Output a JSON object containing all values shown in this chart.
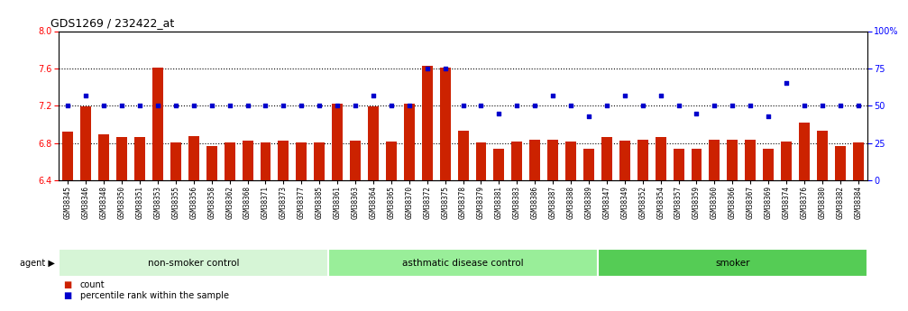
{
  "title": "GDS1269 / 232422_at",
  "samples": [
    "GSM38345",
    "GSM38346",
    "GSM38348",
    "GSM38350",
    "GSM38351",
    "GSM38353",
    "GSM38355",
    "GSM38356",
    "GSM38358",
    "GSM38362",
    "GSM38368",
    "GSM38371",
    "GSM38373",
    "GSM38377",
    "GSM38385",
    "GSM38361",
    "GSM38363",
    "GSM38364",
    "GSM38365",
    "GSM38370",
    "GSM38372",
    "GSM38375",
    "GSM38378",
    "GSM38379",
    "GSM38381",
    "GSM38383",
    "GSM38386",
    "GSM38387",
    "GSM38388",
    "GSM38389",
    "GSM38347",
    "GSM38349",
    "GSM38352",
    "GSM38354",
    "GSM38357",
    "GSM38359",
    "GSM38360",
    "GSM38366",
    "GSM38367",
    "GSM38369",
    "GSM38374",
    "GSM38376",
    "GSM38380",
    "GSM38382",
    "GSM38384"
  ],
  "bar_values": [
    6.92,
    7.19,
    6.89,
    6.86,
    6.86,
    7.61,
    6.81,
    6.87,
    6.77,
    6.81,
    6.83,
    6.81,
    6.83,
    6.81,
    6.81,
    7.22,
    6.83,
    7.19,
    6.82,
    7.22,
    7.63,
    7.61,
    6.93,
    6.81,
    6.74,
    6.82,
    6.84,
    6.84,
    6.82,
    6.74,
    6.86,
    6.83,
    6.84,
    6.86,
    6.74,
    6.74,
    6.84,
    6.84,
    6.84,
    6.74,
    6.82,
    7.02,
    6.93,
    6.77,
    6.81
  ],
  "percentile_values": [
    50,
    57,
    50,
    50,
    50,
    50,
    50,
    50,
    50,
    50,
    50,
    50,
    50,
    50,
    50,
    50,
    50,
    57,
    50,
    50,
    75,
    75,
    50,
    50,
    45,
    50,
    50,
    57,
    50,
    43,
    50,
    57,
    50,
    57,
    50,
    45,
    50,
    50,
    50,
    43,
    65,
    50,
    50,
    50,
    50
  ],
  "groups": [
    {
      "label": "non-smoker control",
      "start": 0,
      "end": 15,
      "color": "#d6f5d6"
    },
    {
      "label": "asthmatic disease control",
      "start": 15,
      "end": 30,
      "color": "#99ee99"
    },
    {
      "label": "smoker",
      "start": 30,
      "end": 45,
      "color": "#55cc55"
    }
  ],
  "ylim_left": [
    6.4,
    8.0
  ],
  "ylim_right": [
    0,
    100
  ],
  "yticks_left": [
    6.4,
    6.8,
    7.2,
    7.6,
    8.0
  ],
  "yticks_right": [
    0,
    25,
    50,
    75,
    100
  ],
  "bar_color": "#cc2200",
  "dot_color": "#0000cc",
  "background_color": "#ffffff",
  "gridline_color": "#000000",
  "legend_items": [
    "count",
    "percentile rank within the sample"
  ]
}
